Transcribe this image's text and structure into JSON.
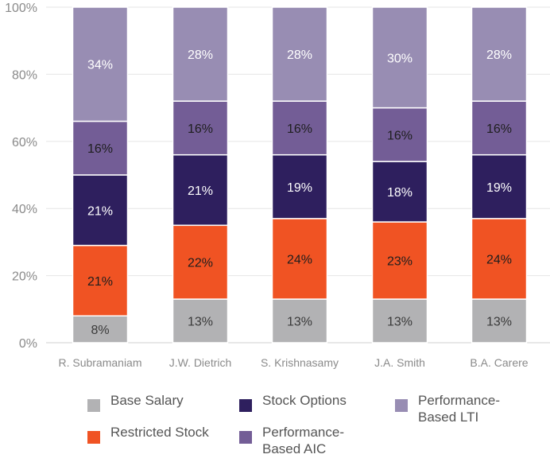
{
  "chart_data": {
    "type": "bar",
    "stacked": true,
    "title": "",
    "xlabel": "",
    "ylabel": "",
    "ylim": [
      0,
      100
    ],
    "yticks": [
      "0%",
      "20%",
      "40%",
      "60%",
      "80%",
      "100%"
    ],
    "categories": [
      "R. Subramaniam",
      "J.W. Dietrich",
      "S. Krishnasamy",
      "J.A. Smith",
      "B.A. Carere"
    ],
    "series": [
      {
        "name": "Base Salary",
        "color": "#b2b2b4",
        "label_color": "#3a3a3a",
        "values": [
          8,
          13,
          13,
          13,
          13
        ]
      },
      {
        "name": "Restricted Stock",
        "color": "#f05323",
        "label_color": "#1e1e1e",
        "values": [
          21,
          22,
          24,
          23,
          24
        ]
      },
      {
        "name": "Stock Options",
        "color": "#2e1f5e",
        "label_color": "#ffffff",
        "values": [
          21,
          21,
          19,
          18,
          19
        ]
      },
      {
        "name": "Performance-Based AIC",
        "color": "#735d96",
        "label_color": "#1e1e1e",
        "values": [
          16,
          16,
          16,
          16,
          16
        ]
      },
      {
        "name": "Performance-Based LTI",
        "color": "#988db3",
        "label_color": "#ffffff",
        "values": [
          34,
          28,
          28,
          30,
          28
        ]
      }
    ],
    "legend": {
      "position": "bottom",
      "items": [
        {
          "label_line1": "Base Salary",
          "label_line2": "",
          "color": "#b2b2b4"
        },
        {
          "label_line1": "Stock Options",
          "label_line2": "",
          "color": "#2e1f5e"
        },
        {
          "label_line1": "Performance-",
          "label_line2": "Based LTI",
          "color": "#988db3"
        },
        {
          "label_line1": "Restricted Stock",
          "label_line2": "",
          "color": "#f05323"
        },
        {
          "label_line1": "Performance-",
          "label_line2": "Based AIC",
          "color": "#735d96"
        }
      ]
    }
  }
}
